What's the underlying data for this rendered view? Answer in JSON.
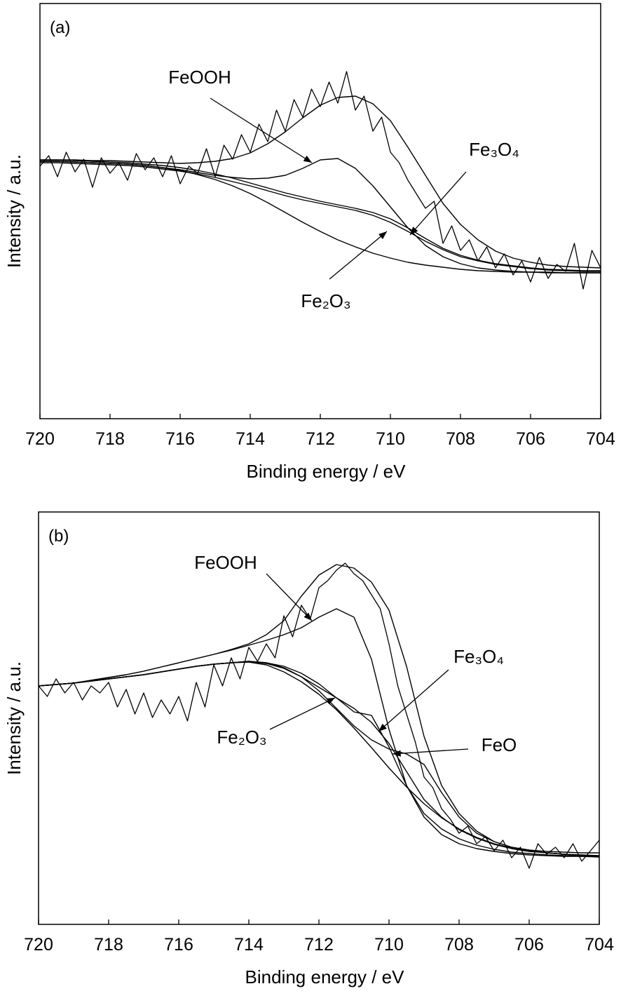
{
  "chart_data": [
    {
      "type": "line",
      "panel_label": "(a)",
      "xlabel": "Binding energy / eV",
      "ylabel": "Intensity / a.u.",
      "xlim": [
        720,
        704
      ],
      "xticks": [
        720,
        718,
        716,
        714,
        712,
        710,
        708,
        706,
        704
      ],
      "ylim": [
        0,
        592
      ],
      "color": "#000000",
      "series": [
        {
          "x": [
            720,
            719.75,
            719.5,
            719.25,
            719,
            718.75,
            718.5,
            718.25,
            718,
            717.75,
            717.5,
            717.25,
            717,
            716.75,
            716.5,
            716.25,
            716,
            715.75,
            715.5,
            715.25,
            715,
            714.75,
            714.5,
            714.25,
            714,
            713.75,
            713.5,
            713.25,
            713,
            712.75,
            712.5,
            712.25,
            712,
            711.75,
            711.5,
            711.25,
            711,
            710.75,
            710.5,
            710.25,
            710,
            709.75,
            709.5,
            709.25,
            709,
            708.75,
            708.5,
            708.25,
            708,
            707.75,
            707.5,
            707.25,
            707,
            706.75,
            706.5,
            706.25,
            706,
            705.75,
            705.5,
            705.25,
            705,
            704.75,
            704.5,
            704.25,
            704
          ],
          "values": [
            360,
            375,
            345,
            380,
            352,
            370,
            330,
            372,
            350,
            365,
            340,
            378,
            355,
            372,
            345,
            375,
            335,
            360,
            350,
            385,
            345,
            390,
            370,
            405,
            380,
            420,
            395,
            440,
            410,
            455,
            430,
            470,
            445,
            480,
            450,
            495,
            440,
            460,
            410,
            430,
            380,
            365,
            340,
            320,
            300,
            310,
            250,
            275,
            240,
            255,
            225,
            245,
            215,
            235,
            205,
            225,
            195,
            230,
            200,
            220,
            210,
            250,
            185,
            240,
            215
          ]
        },
        {
          "x": [
            720,
            719.5,
            719,
            718.5,
            718,
            717.5,
            717,
            716.5,
            716,
            715.5,
            715,
            714.5,
            714,
            713.5,
            713,
            712.5,
            712,
            711.5,
            711,
            710.5,
            710,
            709.5,
            709,
            708.5,
            708,
            707.5,
            707,
            706.5,
            706,
            705.5,
            705,
            704.5,
            704
          ],
          "values": [
            369,
            369,
            369,
            368,
            368,
            367,
            366,
            365,
            364,
            365,
            367,
            371,
            379,
            392,
            409,
            429,
            447,
            458,
            460,
            449,
            425,
            387,
            347,
            307,
            277,
            255,
            239,
            229,
            223,
            219,
            217,
            216,
            215
          ]
        },
        {
          "x": [
            720,
            719.5,
            719,
            718.5,
            718,
            717.5,
            717,
            716.5,
            716,
            715.5,
            715,
            714.5,
            714,
            713.5,
            713,
            712.5,
            712,
            711.5,
            711,
            710.5,
            710,
            709.5,
            709,
            708.5,
            708,
            707.5,
            707,
            706.5,
            706,
            705.5,
            705,
            704.5,
            704
          ],
          "values": [
            367,
            367,
            366,
            365,
            364,
            363,
            361,
            358,
            354,
            348,
            341,
            332,
            321,
            308,
            294,
            280,
            267,
            255,
            245,
            236,
            229,
            223,
            219,
            216,
            213,
            211,
            210,
            209,
            209,
            208,
            208,
            208,
            208
          ]
        },
        {
          "name": "FeOOH",
          "x": [
            720,
            719.5,
            719,
            718.5,
            718,
            717.5,
            717,
            716.5,
            716,
            715.5,
            715,
            714.5,
            714,
            713.5,
            713,
            712.5,
            712,
            711.5,
            711,
            710.5,
            710,
            709.5,
            709,
            708.5,
            708,
            707.5,
            707,
            706.5,
            706,
            705.5,
            705,
            704.5,
            704
          ],
          "values": [
            367,
            367,
            366,
            365,
            364,
            363,
            361,
            358,
            355,
            351,
            347,
            344,
            342,
            343,
            347,
            357,
            369,
            371,
            357,
            332,
            302,
            272,
            247,
            231,
            221,
            215,
            212,
            210,
            209,
            209,
            208,
            208,
            208
          ]
        },
        {
          "name": "Fe₃O₄",
          "x": [
            720,
            719.5,
            719,
            718.5,
            718,
            717.5,
            717,
            716.5,
            716,
            715.5,
            715,
            714.5,
            714,
            713.5,
            713,
            712.5,
            712,
            711.5,
            711,
            710.5,
            710,
            709.5,
            709,
            708.5,
            708,
            707.5,
            707,
            706.5,
            706,
            705.5,
            705,
            704.5,
            704
          ],
          "values": [
            369,
            369,
            368,
            367,
            366,
            365,
            363,
            361,
            358,
            354,
            349,
            343,
            336,
            329,
            322,
            316,
            310,
            305,
            300,
            294,
            285,
            272,
            257,
            243,
            233,
            226,
            221,
            218,
            215,
            213,
            212,
            211,
            211
          ]
        },
        {
          "name": "Fe₂O₃",
          "x": [
            720,
            719.5,
            719,
            718.5,
            718,
            717.5,
            717,
            716.5,
            716,
            715.5,
            715,
            714.5,
            714,
            713.5,
            713,
            712.5,
            712,
            711.5,
            711,
            710.5,
            710,
            709.5,
            709,
            708.5,
            708,
            707.5,
            707,
            706.5,
            706,
            705.5,
            705,
            704.5,
            704
          ],
          "values": [
            365,
            365,
            364,
            363,
            362,
            361,
            359,
            356,
            353,
            349,
            344,
            338,
            332,
            325,
            318,
            312,
            307,
            302,
            297,
            290,
            280,
            267,
            253,
            241,
            231,
            225,
            220,
            217,
            214,
            212,
            211,
            210,
            210
          ]
        }
      ]
    },
    {
      "type": "line",
      "panel_label": "(b)",
      "xlabel": "Binding energy / eV",
      "ylabel": "Intensity / a.u.",
      "xlim": [
        720,
        704
      ],
      "xticks": [
        720,
        718,
        716,
        714,
        712,
        710,
        708,
        706,
        704
      ],
      "ylim": [
        0,
        588
      ],
      "color": "#000000",
      "series": [
        {
          "x": [
            720,
            719.75,
            719.5,
            719.25,
            719,
            718.75,
            718.5,
            718.25,
            718,
            717.75,
            717.5,
            717.25,
            717,
            716.75,
            716.5,
            716.25,
            716,
            715.75,
            715.5,
            715.25,
            715,
            714.75,
            714.5,
            714.25,
            714,
            713.75,
            713.5,
            713.25,
            713,
            712.75,
            712.5,
            712.25,
            712,
            711.75,
            711.5,
            711.25,
            711,
            710.75,
            710.5,
            710.25,
            710,
            709.75,
            709.5,
            709.25,
            709,
            708.75,
            708.5,
            708.25,
            708,
            707.75,
            707.5,
            707.25,
            707,
            706.75,
            706.5,
            706.25,
            706,
            705.75,
            705.5,
            705.25,
            705,
            704.75,
            704.5,
            704.25,
            704
          ],
          "values": [
            340,
            325,
            350,
            330,
            345,
            320,
            340,
            330,
            345,
            310,
            335,
            300,
            330,
            295,
            320,
            300,
            325,
            290,
            345,
            310,
            370,
            340,
            380,
            350,
            395,
            375,
            400,
            380,
            440,
            410,
            455,
            435,
            480,
            490,
            505,
            515,
            500,
            490,
            470,
            450,
            400,
            340,
            300,
            260,
            210,
            195,
            165,
            150,
            130,
            140,
            115,
            125,
            105,
            120,
            95,
            110,
            80,
            115,
            100,
            110,
            95,
            115,
            90,
            105,
            120
          ]
        },
        {
          "x": [
            720,
            719.5,
            719,
            718.5,
            718,
            717.5,
            717,
            716.5,
            716,
            715.5,
            715,
            714.5,
            714,
            713.5,
            713,
            712.5,
            712,
            711.5,
            711,
            710.5,
            710,
            709.5,
            709,
            708.5,
            708,
            707.5,
            707,
            706.5,
            706,
            705.5,
            705,
            704.5,
            704
          ],
          "values": [
            340,
            342,
            344,
            348,
            352,
            356,
            361,
            367,
            373,
            379,
            385,
            392,
            400,
            413,
            433,
            468,
            498,
            513,
            508,
            488,
            448,
            368,
            268,
            198,
            158,
            133,
            118,
            110,
            106,
            104,
            103,
            102,
            102
          ]
        },
        {
          "x": [
            720,
            719.5,
            719,
            718.5,
            718,
            717.5,
            717,
            716.5,
            716,
            715.5,
            715,
            714.5,
            714,
            713.5,
            713,
            712.5,
            712,
            711.5,
            711,
            710.5,
            710,
            709.5,
            709,
            708.5,
            708,
            707.5,
            707,
            706.5,
            706,
            705.5,
            705,
            704.5,
            704
          ],
          "values": [
            340,
            342,
            344,
            347,
            350,
            353,
            356,
            360,
            364,
            368,
            371,
            373,
            374,
            370,
            360,
            346,
            328,
            306,
            280,
            252,
            223,
            196,
            172,
            152,
            136,
            124,
            115,
            109,
            105,
            102,
            100,
            98,
            97
          ]
        },
        {
          "name": "FeOOH",
          "x": [
            720,
            719.5,
            719,
            718.5,
            718,
            717.5,
            717,
            716.5,
            716,
            715.5,
            715,
            714.5,
            714,
            713.5,
            713,
            712.5,
            712,
            711.5,
            711,
            710.5,
            710,
            709.5,
            709,
            708.5,
            708,
            707.5,
            707,
            706.5,
            706,
            705.5,
            705,
            704.5,
            704
          ],
          "values": [
            340,
            342,
            344,
            348,
            352,
            356,
            361,
            367,
            373,
            379,
            385,
            391,
            398,
            405,
            413,
            423,
            438,
            450,
            438,
            378,
            278,
            198,
            153,
            128,
            115,
            108,
            104,
            101,
            99,
            98,
            97,
            97,
            96
          ]
        },
        {
          "name": "Fe₃O₄",
          "x": [
            720,
            719.5,
            719,
            718.5,
            718,
            717.5,
            717,
            716.5,
            716,
            715.5,
            715,
            714.5,
            714,
            713.5,
            713,
            712.5,
            712,
            711.5,
            711,
            710.5,
            710,
            709.5,
            709,
            708.5,
            708,
            707.5,
            707,
            706.5,
            706,
            705.5,
            705,
            704.5,
            704
          ],
          "values": [
            340,
            342,
            344,
            347,
            350,
            353,
            356,
            360,
            364,
            368,
            371,
            373,
            375,
            373,
            368,
            358,
            343,
            323,
            303,
            298,
            253,
            198,
            158,
            136,
            122,
            113,
            107,
            103,
            101,
            99,
            98,
            97,
            97
          ]
        },
        {
          "name": "Fe₂O₃",
          "x": [
            720,
            719.5,
            719,
            718.5,
            718,
            717.5,
            717,
            716.5,
            716,
            715.5,
            715,
            714.5,
            714,
            713.5,
            713,
            712.5,
            712,
            711.5,
            711,
            710.5,
            710,
            709.5,
            709,
            708.5,
            708,
            707.5,
            707,
            706.5,
            706,
            705.5,
            705,
            704.5,
            704
          ],
          "values": [
            340,
            342,
            344,
            347,
            350,
            353,
            356,
            360,
            364,
            368,
            371,
            373,
            375,
            372,
            365,
            353,
            338,
            323,
            308,
            288,
            258,
            218,
            178,
            153,
            135,
            123,
            114,
            108,
            104,
            102,
            100,
            98,
            97
          ]
        },
        {
          "name": "FeO",
          "x": [
            720,
            719.5,
            719,
            718.5,
            718,
            717.5,
            717,
            716.5,
            716,
            715.5,
            715,
            714.5,
            714,
            713.5,
            713,
            712.5,
            712,
            711.5,
            711,
            710.5,
            710,
            709.5,
            709,
            708.5,
            708,
            707.5,
            707,
            706.5,
            706,
            705.5,
            705,
            704.5,
            704
          ],
          "values": [
            340,
            342,
            344,
            347,
            350,
            353,
            356,
            360,
            364,
            368,
            371,
            373,
            375,
            373,
            366,
            353,
            333,
            308,
            283,
            263,
            250,
            243,
            228,
            188,
            153,
            130,
            118,
            110,
            105,
            102,
            100,
            99,
            98
          ]
        }
      ]
    }
  ]
}
